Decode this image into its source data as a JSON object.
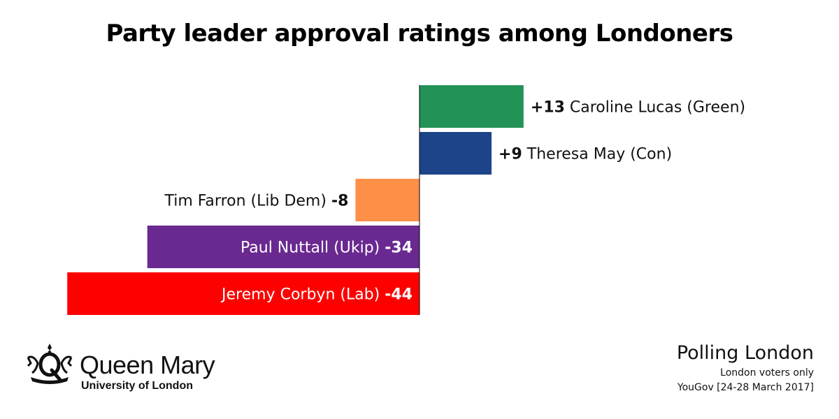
{
  "chart_data": {
    "type": "bar",
    "orientation": "horizontal",
    "title": "Party leader approval ratings among Londoners",
    "categories": [
      "Caroline Lucas (Green)",
      "Theresa May (Con)",
      "Tim Farron (Lib Dem)",
      "Paul Nuttall (Ukip)",
      "Jeremy Corbyn (Lab)"
    ],
    "values": [
      13,
      9,
      -8,
      -34,
      -44
    ],
    "value_labels": [
      "+13",
      "+9",
      "-8",
      "-34",
      "-44"
    ],
    "colors": [
      "#239257",
      "#1d4489",
      "#fd8f47",
      "#6a2891",
      "#fd0000"
    ],
    "xlim": [
      -44,
      13
    ],
    "grid": false,
    "legend": "none"
  },
  "branding": {
    "name": "Queen Mary",
    "subtitle": "University of London",
    "icon": "queen-mary-crown-crest-icon"
  },
  "source": {
    "title": "Polling London",
    "line1": "London voters only",
    "line2": "YouGov [24-28 March 2017]"
  }
}
